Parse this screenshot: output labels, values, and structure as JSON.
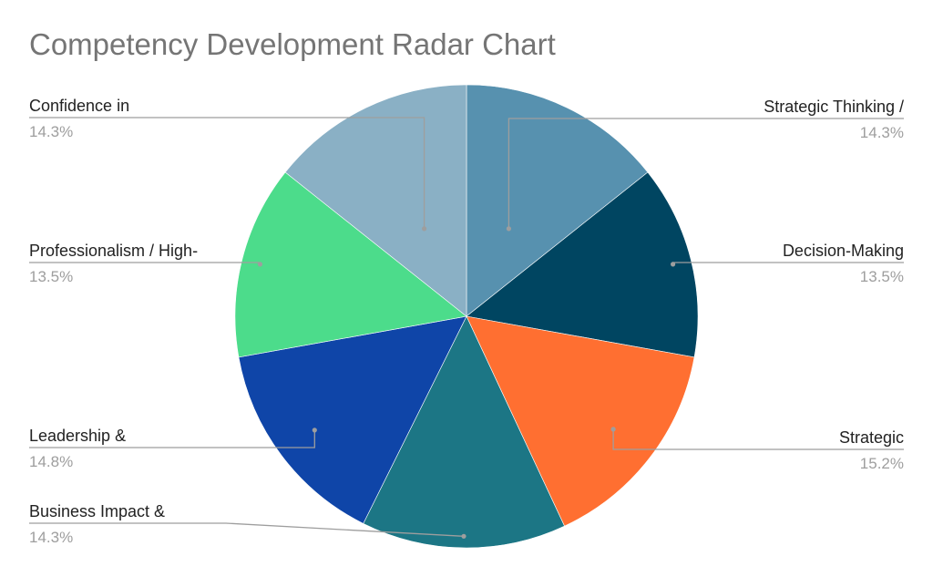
{
  "chart_data": {
    "type": "pie",
    "title": "Competency Development Radar Chart",
    "slices": [
      {
        "label": "Strategic Thinking /",
        "value": 14.3,
        "display": "14.3%",
        "color": "#5791af"
      },
      {
        "label": "Decision-Making",
        "value": 13.5,
        "display": "13.5%",
        "color": "#004561"
      },
      {
        "label": "Strategic",
        "value": 15.2,
        "display": "15.2%",
        "color": "#ff6f31"
      },
      {
        "label": "",
        "value": 14.3,
        "display": "",
        "color": "#1c7685"
      },
      {
        "label": "Leadership &",
        "value": 14.8,
        "display": "14.8%",
        "color": "#0f45a8"
      },
      {
        "label": "Professionalism / High-",
        "value": 13.5,
        "display": "13.5%",
        "color": "#4cdc8b"
      },
      {
        "label": "Confidence in",
        "value": 14.3,
        "display": "14.3%",
        "color": "#8ab0c5"
      }
    ],
    "extra_labels": [
      {
        "label": "Business Impact &",
        "display": "14.3%"
      }
    ],
    "legend": "none"
  }
}
